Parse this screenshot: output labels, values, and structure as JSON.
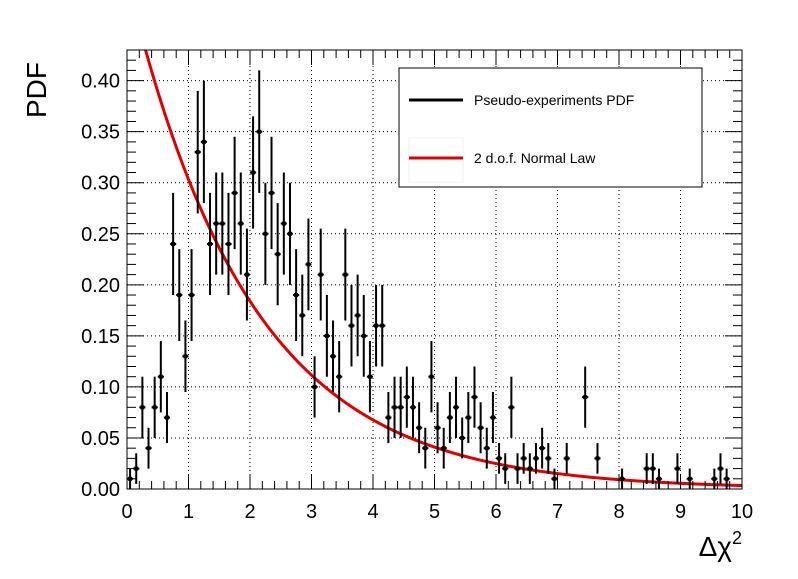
{
  "chart_data": {
    "type": "scatter",
    "title": "",
    "xlabel": "Δχ²",
    "xlabel_base": "Δχ",
    "xlabel_sup": "2",
    "ylabel": "PDF",
    "xlim": [
      0,
      10
    ],
    "ylim": [
      0,
      0.43
    ],
    "xticks": [
      0,
      1,
      2,
      3,
      4,
      5,
      6,
      7,
      8,
      9,
      10
    ],
    "xtick_labels": [
      "0",
      "1",
      "2",
      "3",
      "4",
      "5",
      "6",
      "7",
      "8",
      "9",
      "10"
    ],
    "yticks": [
      0,
      0.05,
      0.1,
      0.15,
      0.2,
      0.25,
      0.3,
      0.35,
      0.4
    ],
    "ytick_labels": [
      "0.00",
      "0.05",
      "0.10",
      "0.15",
      "0.20",
      "0.25",
      "0.30",
      "0.35",
      "0.40"
    ],
    "grid": true,
    "legend_position": "top-right",
    "legend": [
      {
        "label": "Pseudo-experiments PDF",
        "color": "#000000"
      },
      {
        "label": "2 d.o.f. Normal Law",
        "color": "#e00000"
      }
    ],
    "series": [
      {
        "name": "Pseudo-experiments PDF",
        "kind": "points_with_errors",
        "color": "#000000",
        "bin_half_width": 0.05,
        "points": [
          [
            0.05,
            0.01,
            0.01
          ],
          [
            0.15,
            0.02,
            0.015
          ],
          [
            0.25,
            0.08,
            0.03
          ],
          [
            0.35,
            0.04,
            0.02
          ],
          [
            0.45,
            0.08,
            0.03
          ],
          [
            0.55,
            0.11,
            0.035
          ],
          [
            0.65,
            0.07,
            0.025
          ],
          [
            0.75,
            0.24,
            0.05
          ],
          [
            0.85,
            0.19,
            0.045
          ],
          [
            0.95,
            0.13,
            0.035
          ],
          [
            1.05,
            0.19,
            0.045
          ],
          [
            1.15,
            0.33,
            0.06
          ],
          [
            1.25,
            0.34,
            0.06
          ],
          [
            1.35,
            0.24,
            0.05
          ],
          [
            1.45,
            0.26,
            0.05
          ],
          [
            1.55,
            0.26,
            0.05
          ],
          [
            1.65,
            0.24,
            0.05
          ],
          [
            1.75,
            0.29,
            0.055
          ],
          [
            1.85,
            0.26,
            0.05
          ],
          [
            1.95,
            0.21,
            0.045
          ],
          [
            2.05,
            0.31,
            0.055
          ],
          [
            2.15,
            0.35,
            0.06
          ],
          [
            2.25,
            0.25,
            0.05
          ],
          [
            2.35,
            0.29,
            0.055
          ],
          [
            2.45,
            0.23,
            0.05
          ],
          [
            2.55,
            0.26,
            0.05
          ],
          [
            2.65,
            0.25,
            0.05
          ],
          [
            2.75,
            0.19,
            0.045
          ],
          [
            2.85,
            0.17,
            0.04
          ],
          [
            2.95,
            0.22,
            0.045
          ],
          [
            3.05,
            0.1,
            0.03
          ],
          [
            3.15,
            0.21,
            0.045
          ],
          [
            3.25,
            0.15,
            0.04
          ],
          [
            3.35,
            0.13,
            0.035
          ],
          [
            3.45,
            0.11,
            0.035
          ],
          [
            3.55,
            0.21,
            0.045
          ],
          [
            3.65,
            0.16,
            0.04
          ],
          [
            3.75,
            0.17,
            0.04
          ],
          [
            3.85,
            0.15,
            0.04
          ],
          [
            3.95,
            0.11,
            0.035
          ],
          [
            4.05,
            0.16,
            0.04
          ],
          [
            4.15,
            0.16,
            0.04
          ],
          [
            4.25,
            0.07,
            0.025
          ],
          [
            4.35,
            0.08,
            0.03
          ],
          [
            4.45,
            0.08,
            0.03
          ],
          [
            4.55,
            0.09,
            0.03
          ],
          [
            4.65,
            0.08,
            0.03
          ],
          [
            4.75,
            0.06,
            0.025
          ],
          [
            4.85,
            0.04,
            0.02
          ],
          [
            4.95,
            0.11,
            0.035
          ],
          [
            5.05,
            0.06,
            0.025
          ],
          [
            5.15,
            0.04,
            0.02
          ],
          [
            5.25,
            0.07,
            0.025
          ],
          [
            5.35,
            0.08,
            0.03
          ],
          [
            5.45,
            0.05,
            0.02
          ],
          [
            5.55,
            0.07,
            0.025
          ],
          [
            5.65,
            0.09,
            0.03
          ],
          [
            5.75,
            0.06,
            0.025
          ],
          [
            5.85,
            0.04,
            0.02
          ],
          [
            5.95,
            0.07,
            0.025
          ],
          [
            6.05,
            0.03,
            0.015
          ],
          [
            6.15,
            0.02,
            0.015
          ],
          [
            6.25,
            0.08,
            0.03
          ],
          [
            6.35,
            0.02,
            0.015
          ],
          [
            6.45,
            0.03,
            0.015
          ],
          [
            6.55,
            0.02,
            0.015
          ],
          [
            6.65,
            0.03,
            0.015
          ],
          [
            6.75,
            0.04,
            0.02
          ],
          [
            6.85,
            0.03,
            0.015
          ],
          [
            6.95,
            0.01,
            0.01
          ],
          [
            7.15,
            0.03,
            0.015
          ],
          [
            7.45,
            0.09,
            0.03
          ],
          [
            7.65,
            0.03,
            0.015
          ],
          [
            8.05,
            0.01,
            0.01
          ],
          [
            8.45,
            0.02,
            0.015
          ],
          [
            8.55,
            0.02,
            0.015
          ],
          [
            8.65,
            0.01,
            0.01
          ],
          [
            8.95,
            0.02,
            0.015
          ],
          [
            9.15,
            0.01,
            0.01
          ],
          [
            9.55,
            0.01,
            0.01
          ],
          [
            9.65,
            0.02,
            0.015
          ],
          [
            9.75,
            0.01,
            0.01
          ]
        ]
      },
      {
        "name": "2 d.o.f. Normal Law",
        "kind": "function",
        "function": "0.5*exp(-x/2)",
        "color": "#e00000"
      }
    ]
  }
}
